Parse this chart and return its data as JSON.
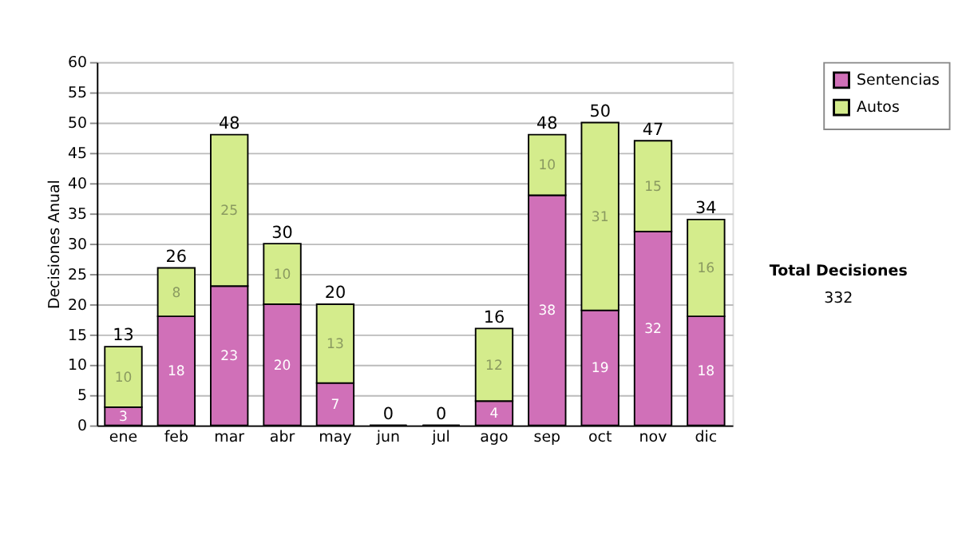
{
  "chart_data": {
    "type": "bar",
    "stacked": true,
    "categories": [
      "ene",
      "feb",
      "mar",
      "abr",
      "may",
      "jun",
      "jul",
      "ago",
      "sep",
      "oct",
      "nov",
      "dic"
    ],
    "series": [
      {
        "name": "Sentencias",
        "color": "#d070b8",
        "values": [
          3,
          18,
          23,
          20,
          7,
          0,
          0,
          4,
          38,
          19,
          32,
          18
        ],
        "value_labels": [
          "3",
          "18",
          "23",
          "20",
          "7",
          null,
          null,
          "4",
          "38",
          "19",
          "32",
          "18"
        ]
      },
      {
        "name": "Autos",
        "color": "#d4ec8c",
        "values": [
          10,
          8,
          25,
          10,
          13,
          0,
          0,
          12,
          10,
          31,
          15,
          16
        ],
        "value_labels": [
          "10",
          "8",
          "25",
          "10",
          "13",
          null,
          null,
          "12",
          "10",
          "31",
          "15",
          "16"
        ]
      }
    ],
    "totals": [
      "13",
      "26",
      "48",
      "30",
      "20",
      "0",
      "0",
      "16",
      "48",
      "50",
      "47",
      "34"
    ],
    "ylabel": "Decisiones Anual",
    "ylim": [
      0,
      60
    ],
    "yticks": [
      0,
      5,
      10,
      15,
      20,
      25,
      30,
      35,
      40,
      45,
      50,
      55,
      60
    ],
    "grid": "y",
    "legend": "right",
    "annotations": [
      "Total Decisiones",
      "332"
    ]
  }
}
